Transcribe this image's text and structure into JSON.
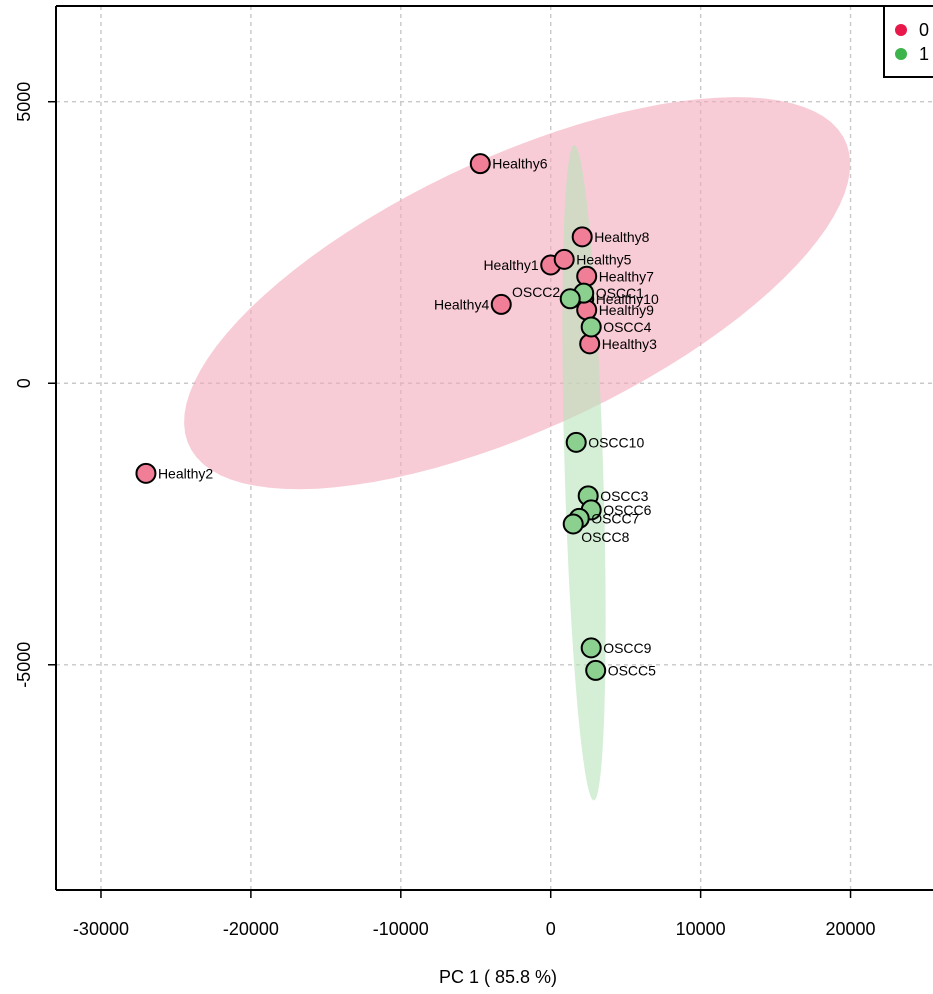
{
  "chart_data": {
    "type": "scatter",
    "xlabel": "PC 1 ( 85.8 %)",
    "ylabel": "",
    "xlim": [
      -33000,
      25500
    ],
    "ylim": [
      -9000,
      6700
    ],
    "x_ticks": [
      -30000,
      -20000,
      -10000,
      0,
      10000,
      20000
    ],
    "y_ticks": [
      -5000,
      0,
      5000
    ],
    "grid": true,
    "legend_position": "top-right",
    "series": [
      {
        "name": "0",
        "color": "#e8194a",
        "point_fill": "#f07e96",
        "ellipse_fill": "#f4aabb",
        "points": [
          {
            "label": "Healthy6",
            "x": -4700,
            "y": 3900
          },
          {
            "label": "Healthy8",
            "x": 2100,
            "y": 2600
          },
          {
            "label": "Healthy1",
            "x": 0,
            "y": 2100
          },
          {
            "label": "Healthy5",
            "x": 900,
            "y": 2200
          },
          {
            "label": "Healthy7",
            "x": 2400,
            "y": 1900
          },
          {
            "label": "Healthy4",
            "x": -3300,
            "y": 1400
          },
          {
            "label": "Healthy10",
            "x": 2200,
            "y": 1500
          },
          {
            "label": "Healthy9",
            "x": 2400,
            "y": 1300
          },
          {
            "label": "Healthy3",
            "x": 2600,
            "y": 700
          },
          {
            "label": "Healthy2",
            "x": -27000,
            "y": -1600
          }
        ]
      },
      {
        "name": "1",
        "color": "#3cb44b",
        "point_fill": "#8cd090",
        "ellipse_fill": "#b9e3bb",
        "points": [
          {
            "label": "OSCC1",
            "x": 2200,
            "y": 1600
          },
          {
            "label": "OSCC2",
            "x": 1300,
            "y": 1500
          },
          {
            "label": "OSCC4",
            "x": 2700,
            "y": 1000
          },
          {
            "label": "OSCC10",
            "x": 1700,
            "y": -1050
          },
          {
            "label": "OSCC3",
            "x": 2500,
            "y": -2000
          },
          {
            "label": "OSCC6",
            "x": 2700,
            "y": -2250
          },
          {
            "label": "OSCC7",
            "x": 1900,
            "y": -2400
          },
          {
            "label": "OSCC8",
            "x": 1500,
            "y": -2500
          },
          {
            "label": "OSCC9",
            "x": 2700,
            "y": -4700
          },
          {
            "label": "OSCC5",
            "x": 3000,
            "y": -5100
          }
        ]
      }
    ]
  }
}
